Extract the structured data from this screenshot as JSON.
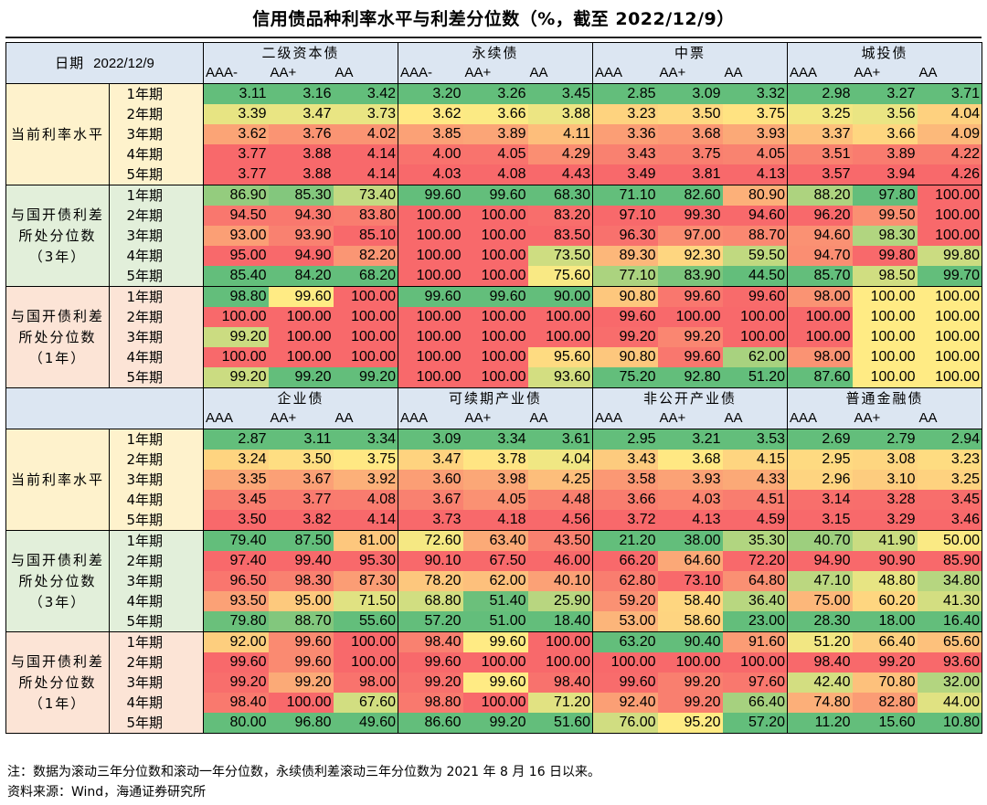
{
  "title": "信用债品种利率水平与利差分位数（%，截至 2022/12/9）",
  "date_label": "日期",
  "date_value": "2022/12/9",
  "group_labels": [
    "当前利率水平",
    "与国开债利差所处分位数（3年）",
    "与国开债利差所处分位数（1年）"
  ],
  "tenors": [
    "1年期",
    "2年期",
    "3年期",
    "4年期",
    "5年期"
  ],
  "colors": {
    "low": "#63BE7B",
    "mid": "#FFEB84",
    "high": "#F8696B",
    "header_bg": "#DCE6F2",
    "group_rate_bg": "#FEF2CC",
    "group_3y_bg": "#E2EFDA",
    "group_1y_bg": "#FCE4D6"
  },
  "blocks": [
    {
      "categories": [
        {
          "name": "二级资本债",
          "ratings": [
            "AAA-",
            "AA+",
            "AA"
          ]
        },
        {
          "name": "永续债",
          "ratings": [
            "AAA-",
            "AA+",
            "AA"
          ]
        },
        {
          "name": "中票",
          "ratings": [
            "AAA",
            "AA+",
            "AA"
          ]
        },
        {
          "name": "城投债",
          "ratings": [
            "AAA",
            "AA+",
            "AA"
          ]
        }
      ],
      "groups": [
        {
          "rows": [
            [
              "3.11",
              "3.16",
              "3.42",
              "3.20",
              "3.26",
              "3.45",
              "2.85",
              "3.09",
              "3.32",
              "2.98",
              "3.27",
              "3.71"
            ],
            [
              "3.39",
              "3.47",
              "3.73",
              "3.62",
              "3.66",
              "3.88",
              "3.23",
              "3.50",
              "3.75",
              "3.25",
              "3.56",
              "4.04"
            ],
            [
              "3.62",
              "3.76",
              "4.02",
              "3.85",
              "3.89",
              "4.11",
              "3.36",
              "3.68",
              "3.93",
              "3.37",
              "3.66",
              "4.09"
            ],
            [
              "3.77",
              "3.88",
              "4.14",
              "4.00",
              "4.05",
              "4.29",
              "3.43",
              "3.75",
              "4.05",
              "3.51",
              "3.89",
              "4.22"
            ],
            [
              "3.77",
              "3.88",
              "4.14",
              "4.03",
              "4.08",
              "4.43",
              "3.49",
              "3.81",
              "4.13",
              "3.57",
              "3.94",
              "4.26"
            ]
          ]
        },
        {
          "rows": [
            [
              "86.90",
              "85.30",
              "73.40",
              "99.60",
              "99.60",
              "68.30",
              "71.10",
              "82.60",
              "80.90",
              "88.20",
              "97.80",
              "100.00"
            ],
            [
              "94.50",
              "94.30",
              "83.80",
              "100.00",
              "100.00",
              "83.20",
              "97.10",
              "99.30",
              "94.60",
              "96.20",
              "99.50",
              "100.00"
            ],
            [
              "93.00",
              "93.90",
              "85.10",
              "100.00",
              "100.00",
              "83.50",
              "96.30",
              "97.00",
              "88.70",
              "94.60",
              "98.30",
              "100.00"
            ],
            [
              "95.00",
              "94.90",
              "82.20",
              "100.00",
              "100.00",
              "73.50",
              "89.30",
              "92.30",
              "59.50",
              "94.70",
              "99.80",
              "99.80"
            ],
            [
              "85.40",
              "84.20",
              "68.20",
              "100.00",
              "100.00",
              "75.60",
              "77.10",
              "83.90",
              "44.50",
              "85.70",
              "98.50",
              "99.70"
            ]
          ]
        },
        {
          "rows": [
            [
              "98.80",
              "99.60",
              "100.00",
              "99.60",
              "99.60",
              "90.00",
              "90.80",
              "99.60",
              "99.60",
              "98.00",
              "100.00",
              "100.00"
            ],
            [
              "100.00",
              "100.00",
              "100.00",
              "100.00",
              "100.00",
              "100.00",
              "99.60",
              "100.00",
              "100.00",
              "100.00",
              "100.00",
              "100.00"
            ],
            [
              "99.20",
              "100.00",
              "100.00",
              "100.00",
              "100.00",
              "100.00",
              "99.20",
              "99.20",
              "100.00",
              "100.00",
              "100.00",
              "100.00"
            ],
            [
              "100.00",
              "100.00",
              "100.00",
              "100.00",
              "100.00",
              "95.60",
              "90.80",
              "99.60",
              "62.00",
              "98.00",
              "100.00",
              "100.00"
            ],
            [
              "99.20",
              "99.20",
              "99.20",
              "100.00",
              "100.00",
              "93.60",
              "75.20",
              "92.80",
              "51.20",
              "87.60",
              "100.00",
              "100.00"
            ]
          ]
        }
      ]
    },
    {
      "categories": [
        {
          "name": "企业债",
          "ratings": [
            "AAA",
            "AA+",
            "AA"
          ]
        },
        {
          "name": "可续期产业债",
          "ratings": [
            "AAA",
            "AA+",
            "AA"
          ]
        },
        {
          "name": "非公开产业债",
          "ratings": [
            "AAA",
            "AA+",
            "AA"
          ]
        },
        {
          "name": "普通金融债",
          "ratings": [
            "AAA",
            "AA+",
            "AA"
          ]
        }
      ],
      "groups": [
        {
          "rows": [
            [
              "2.87",
              "3.11",
              "3.34",
              "3.09",
              "3.34",
              "3.61",
              "2.95",
              "3.21",
              "3.53",
              "2.69",
              "2.79",
              "2.94"
            ],
            [
              "3.24",
              "3.50",
              "3.75",
              "3.47",
              "3.78",
              "4.04",
              "3.43",
              "3.68",
              "4.15",
              "2.95",
              "3.08",
              "3.23"
            ],
            [
              "3.35",
              "3.67",
              "3.92",
              "3.60",
              "3.98",
              "4.25",
              "3.58",
              "3.93",
              "4.33",
              "2.96",
              "3.10",
              "3.25"
            ],
            [
              "3.45",
              "3.77",
              "4.08",
              "3.67",
              "4.05",
              "4.48",
              "3.66",
              "4.03",
              "4.51",
              "3.14",
              "3.28",
              "3.45"
            ],
            [
              "3.50",
              "3.82",
              "4.14",
              "3.73",
              "4.18",
              "4.56",
              "3.72",
              "4.13",
              "4.59",
              "3.15",
              "3.29",
              "3.46"
            ]
          ]
        },
        {
          "rows": [
            [
              "79.40",
              "87.50",
              "81.00",
              "72.60",
              "63.40",
              "43.50",
              "21.20",
              "38.00",
              "35.30",
              "40.70",
              "41.90",
              "50.00"
            ],
            [
              "97.40",
              "99.40",
              "95.30",
              "90.10",
              "67.50",
              "46.00",
              "66.20",
              "64.60",
              "72.20",
              "94.90",
              "90.90",
              "85.90"
            ],
            [
              "96.50",
              "98.30",
              "87.30",
              "78.20",
              "62.00",
              "40.10",
              "62.80",
              "73.10",
              "64.80",
              "47.10",
              "48.80",
              "34.80"
            ],
            [
              "93.50",
              "95.00",
              "71.50",
              "68.80",
              "51.40",
              "25.90",
              "59.20",
              "58.40",
              "36.40",
              "75.00",
              "60.20",
              "41.30"
            ],
            [
              "79.80",
              "88.70",
              "55.60",
              "57.20",
              "51.00",
              "18.40",
              "53.00",
              "58.60",
              "23.00",
              "28.30",
              "18.00",
              "16.40"
            ]
          ]
        },
        {
          "rows": [
            [
              "92.00",
              "99.60",
              "100.00",
              "98.40",
              "99.60",
              "100.00",
              "63.20",
              "90.40",
              "91.60",
              "51.20",
              "66.40",
              "65.60"
            ],
            [
              "99.60",
              "99.60",
              "100.00",
              "99.60",
              "100.00",
              "100.00",
              "100.00",
              "100.00",
              "100.00",
              "98.40",
              "99.20",
              "93.60"
            ],
            [
              "99.20",
              "99.20",
              "98.00",
              "99.20",
              "99.60",
              "98.40",
              "99.60",
              "99.20",
              "97.60",
              "42.40",
              "70.80",
              "32.00"
            ],
            [
              "98.40",
              "100.00",
              "67.60",
              "98.80",
              "100.00",
              "71.20",
              "92.40",
              "99.20",
              "66.40",
              "74.80",
              "82.80",
              "44.00"
            ],
            [
              "80.00",
              "96.80",
              "49.60",
              "86.60",
              "99.20",
              "51.60",
              "76.00",
              "95.20",
              "57.20",
              "11.20",
              "15.60",
              "10.80"
            ]
          ]
        }
      ]
    }
  ],
  "note": "注：数据为滚动三年分位数和滚动一年分位数，永续债利差滚动三年分位数为 2021 年 8 月 16 日以来。",
  "source": "资料来源：Wind，海通证券研究所"
}
